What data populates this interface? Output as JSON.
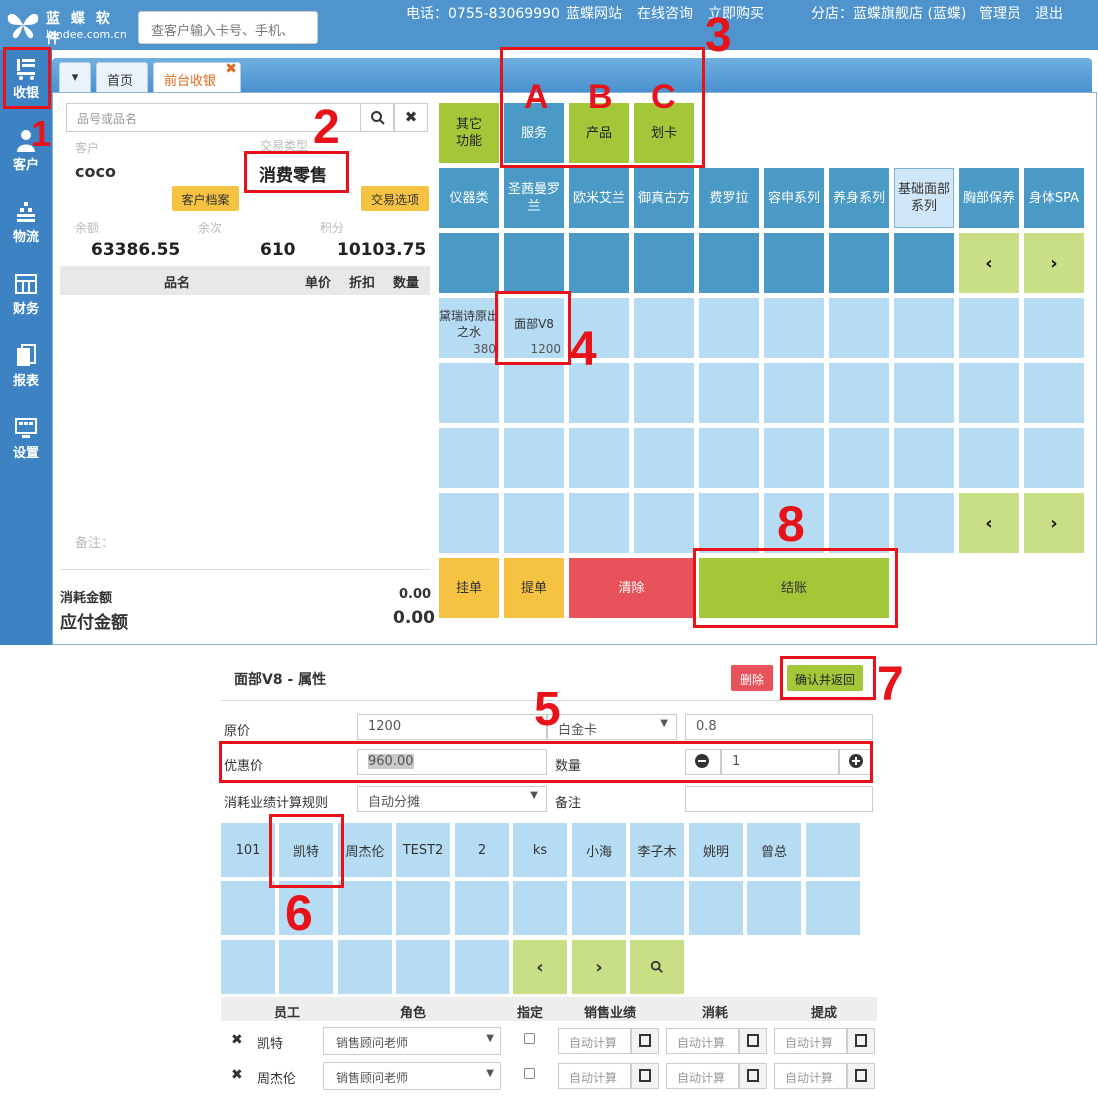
{
  "brand": {
    "name": "蓝 蝶 软 件",
    "domain": "landee.com.cn"
  },
  "header": {
    "search_placeholder": "查客户输入卡号、手机、",
    "phone": "电话：0755-83069990",
    "links": [
      "蓝蝶网站",
      "在线咨询",
      "立即购买"
    ],
    "branch": "分店：蓝蝶旗舰店 (蓝蝶)",
    "user": "管理员",
    "logout": "退出"
  },
  "sidebar": {
    "items": [
      {
        "label": "收银",
        "icon": "cashier-icon"
      },
      {
        "label": "客户",
        "icon": "customer-icon"
      },
      {
        "label": "物流",
        "icon": "logistics-icon"
      },
      {
        "label": "财务",
        "icon": "finance-icon"
      },
      {
        "label": "报表",
        "icon": "report-icon"
      },
      {
        "label": "设置",
        "icon": "settings-icon"
      }
    ]
  },
  "tabs": {
    "home": "首页",
    "pos": "前台收银"
  },
  "left": {
    "search_placeholder": "品号或品名",
    "customer_label": "客户",
    "customer": "coco",
    "trade_type_label": "交易类型",
    "trade_type": "消费零售",
    "customer_file_btn": "客户档案",
    "trade_option_btn": "交易选项",
    "balance_label": "余额",
    "times_label": "余次",
    "points_label": "积分",
    "balance": "63386.55",
    "times": "610",
    "points": "10103.75",
    "cols": [
      "品名",
      "单价",
      "折扣",
      "数量"
    ],
    "remark_label": "备注：",
    "consume_label": "消耗金额",
    "consume_value": "0.00",
    "payable_label": "应付金额",
    "payable_value": "0.00"
  },
  "right": {
    "top_buttons": [
      "其它\n功能",
      "服务",
      "产品",
      "划卡"
    ],
    "categories": [
      "仪器类",
      "圣茜曼罗兰",
      "欧米艾兰",
      "御真古方",
      "费罗拉",
      "容申系列",
      "养身系列",
      "基础面部系列",
      "胸部保养",
      "身体SPA"
    ],
    "products": [
      {
        "name": "黛瑞诗原出之水",
        "price": "380"
      },
      {
        "name": "面部V8",
        "price": "1200"
      }
    ],
    "actions": {
      "hold": "挂单",
      "retrieve": "提单",
      "clear": "清除",
      "checkout": "结账"
    }
  },
  "annotations": {
    "n1": "1",
    "n2": "2",
    "n3": "3",
    "n4": "4",
    "n5": "5",
    "n6": "6",
    "n7": "7",
    "n8": "8",
    "a": "A",
    "b": "B",
    "c": "C"
  },
  "detail": {
    "title": "面部V8 - 属性",
    "delete_btn": "删除",
    "confirm_btn": "确认并返回",
    "orig_price_label": "原价",
    "orig_price": "1200",
    "card_type": "白金卡",
    "discount": "0.8",
    "promo_price_label": "优惠价",
    "promo_price": "960.00",
    "qty_label": "数量",
    "qty": "1",
    "rule_label": "消耗业绩计算规则",
    "rule_value": "自动分摊",
    "remark_label": "备注",
    "employees": [
      "101",
      "凯特",
      "周杰伦",
      "TEST2",
      "2",
      "ks",
      "小海",
      "李子木",
      "姚明",
      "曾总"
    ],
    "table_cols": [
      "员工",
      "角色",
      "指定",
      "销售业绩",
      "消耗",
      "提成"
    ],
    "rows": [
      {
        "name": "凯特",
        "role": "销售顾问老师"
      },
      {
        "name": "周杰伦",
        "role": "销售顾问老师"
      }
    ],
    "auto_calc": "自动计算"
  }
}
